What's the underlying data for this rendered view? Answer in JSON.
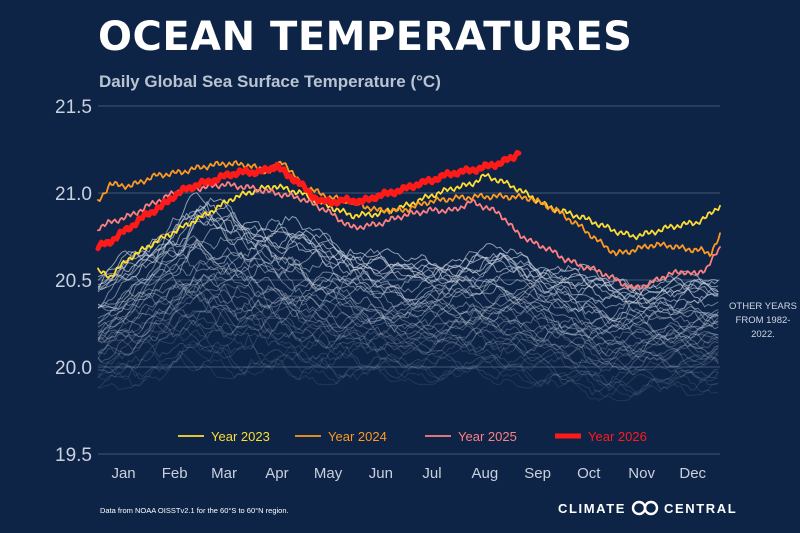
{
  "title": "OCEAN TEMPERATURES",
  "subtitle": "Daily Global Sea Surface Temperature (°C)",
  "side_note": "OTHER YEARS FROM 1982-2022.",
  "source_note": "Data from NOAA OISSTv2.1 for the 60°S to 60°N region.",
  "brand": {
    "left": "CLIMATE",
    "right": "CENTRAL",
    "icon": "climate-central-logo"
  },
  "colors": {
    "background": "#0d2447",
    "grid": "#3f5676",
    "other_years": "#c7d0de"
  },
  "chart_data": {
    "type": "line",
    "title": "OCEAN TEMPERATURES",
    "subtitle": "Daily Global Sea Surface Temperature (°C)",
    "xlabel": "",
    "ylabel": "",
    "x_unit": "day of year",
    "xlim": [
      1,
      366
    ],
    "ylim": [
      19.5,
      21.5
    ],
    "yticks": [
      19.5,
      20.0,
      20.5,
      21.0,
      21.5
    ],
    "ytick_labels": [
      "19.5",
      "20.0",
      "20.5",
      "21.0",
      "21.5"
    ],
    "xticks": [
      {
        "x": 16,
        "label": "Jan"
      },
      {
        "x": 46,
        "label": "Feb"
      },
      {
        "x": 75,
        "label": "Mar"
      },
      {
        "x": 106,
        "label": "Apr"
      },
      {
        "x": 136,
        "label": "May"
      },
      {
        "x": 167,
        "label": "Jun"
      },
      {
        "x": 197,
        "label": "Jul"
      },
      {
        "x": 228,
        "label": "Aug"
      },
      {
        "x": 259,
        "label": "Sep"
      },
      {
        "x": 289,
        "label": "Oct"
      },
      {
        "x": 320,
        "label": "Nov"
      },
      {
        "x": 350,
        "label": "Dec"
      }
    ],
    "grid": true,
    "legend_position": "bottom",
    "series": [
      {
        "name": "Year 2023",
        "color": "#ffdd33",
        "width": 1.8,
        "x": [
          1,
          8,
          20,
          35,
          50,
          65,
          80,
          95,
          105,
          120,
          135,
          150,
          165,
          180,
          195,
          210,
          220,
          228,
          237,
          246,
          255,
          265,
          275,
          285,
          295,
          305,
          315,
          325,
          335,
          345,
          352,
          358,
          366
        ],
        "y": [
          20.55,
          20.52,
          20.63,
          20.72,
          20.8,
          20.88,
          20.97,
          21.02,
          21.04,
          21.0,
          20.93,
          20.87,
          20.88,
          20.92,
          20.98,
          21.03,
          21.05,
          21.1,
          21.07,
          21.03,
          20.98,
          20.92,
          20.89,
          20.86,
          20.82,
          20.78,
          20.75,
          20.77,
          20.8,
          20.82,
          20.83,
          20.86,
          20.93
        ]
      },
      {
        "name": "Year 2024",
        "color": "#ff9922",
        "width": 1.8,
        "x": [
          1,
          8,
          20,
          35,
          50,
          62,
          75,
          90,
          100,
          110,
          120,
          135,
          150,
          165,
          180,
          195,
          210,
          225,
          240,
          255,
          270,
          285,
          295,
          305,
          315,
          325,
          335,
          345,
          355,
          360,
          366
        ],
        "y": [
          20.95,
          21.05,
          21.04,
          21.1,
          21.12,
          21.15,
          21.17,
          21.16,
          21.12,
          21.18,
          21.05,
          20.98,
          20.95,
          20.9,
          20.9,
          20.95,
          20.97,
          20.98,
          20.98,
          20.97,
          20.9,
          20.8,
          20.72,
          20.65,
          20.67,
          20.7,
          20.7,
          20.68,
          20.67,
          20.65,
          20.75
        ]
      },
      {
        "name": "Year 2025",
        "color": "#ff8080",
        "width": 1.8,
        "x": [
          1,
          8,
          20,
          35,
          50,
          62,
          75,
          90,
          105,
          120,
          135,
          150,
          165,
          180,
          195,
          210,
          220,
          228,
          237,
          246,
          255,
          265,
          275,
          285,
          295,
          305,
          315,
          325,
          335,
          345,
          352,
          358,
          366
        ],
        "y": [
          20.8,
          20.83,
          20.87,
          20.95,
          21.02,
          21.03,
          21.05,
          21.03,
          21.0,
          20.97,
          20.9,
          20.8,
          20.82,
          20.87,
          20.9,
          20.9,
          20.95,
          20.92,
          20.88,
          20.78,
          20.72,
          20.68,
          20.62,
          20.58,
          20.55,
          20.5,
          20.45,
          20.48,
          20.53,
          20.55,
          20.53,
          20.57,
          20.68
        ]
      },
      {
        "name": "Year 2026",
        "color": "#ff1a1a",
        "width": 5,
        "x": [
          1,
          8,
          15,
          22,
          30,
          38,
          45,
          52,
          60,
          68,
          76,
          84,
          92,
          100,
          106,
          112,
          118,
          125,
          132,
          140,
          148,
          156,
          164,
          172,
          180,
          188,
          196,
          204,
          212,
          220,
          228,
          236,
          244,
          248
        ],
        "y": [
          20.69,
          20.72,
          20.77,
          20.82,
          20.88,
          20.92,
          20.98,
          21.02,
          21.05,
          21.07,
          21.1,
          21.12,
          21.12,
          21.13,
          21.16,
          21.1,
          21.07,
          21.0,
          20.95,
          20.95,
          20.96,
          20.95,
          20.98,
          21.0,
          21.02,
          21.05,
          21.07,
          21.1,
          21.12,
          21.13,
          21.15,
          21.17,
          21.2,
          21.24
        ]
      }
    ],
    "legend": [
      "Year 2023",
      "Year 2024",
      "Year 2025",
      "Year 2026"
    ],
    "other_years": {
      "label": "OTHER YEARS FROM 1982-2022.",
      "from_year": 1982,
      "to_year": 2022,
      "count": 41,
      "color": "#c7d0de",
      "approx_range": {
        "lowest": {
          "x": [
            1,
            60,
            120,
            180,
            240,
            300,
            366
          ],
          "y": [
            19.85,
            19.95,
            19.9,
            19.9,
            19.9,
            19.8,
            19.85
          ]
        },
        "highest": {
          "x": [
            1,
            60,
            120,
            180,
            240,
            300,
            366
          ],
          "y": [
            20.55,
            21.02,
            20.85,
            20.65,
            20.72,
            20.55,
            20.55
          ]
        }
      }
    }
  }
}
